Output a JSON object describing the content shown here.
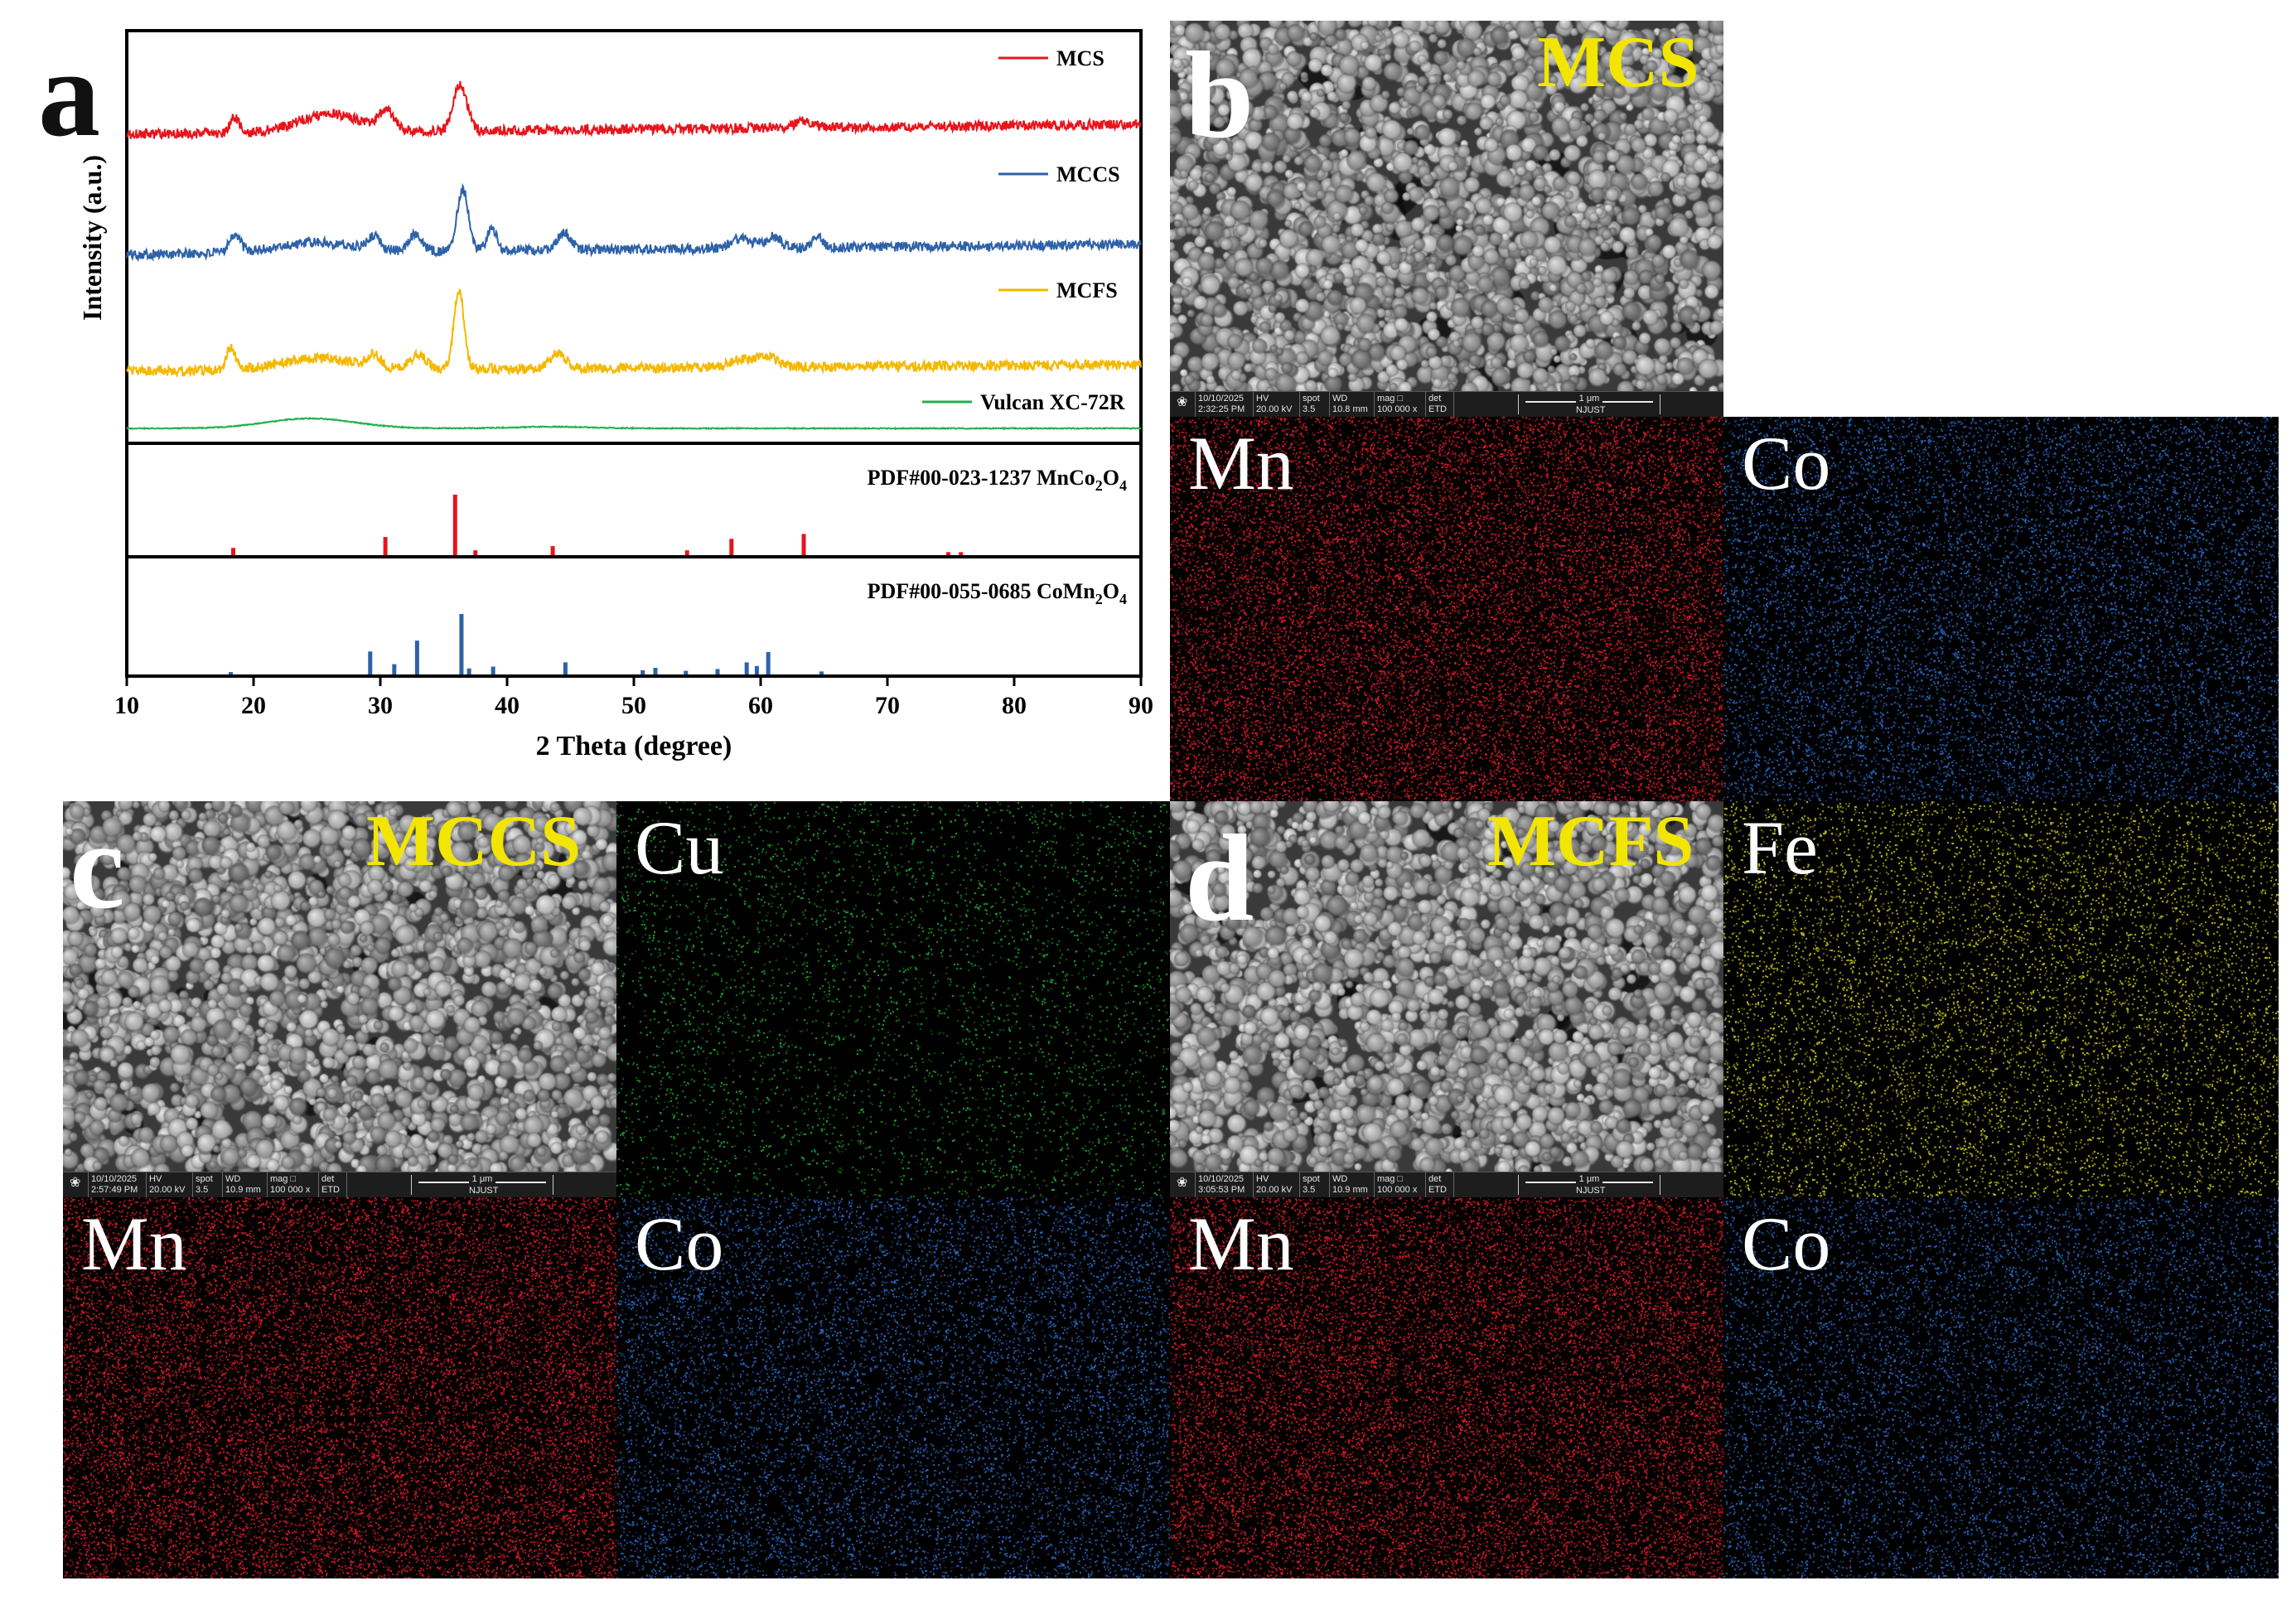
{
  "panels": {
    "a": {
      "letter": "a"
    },
    "b": {
      "letter": "b",
      "sample": "MCS",
      "elements": [
        "Mn",
        "Co"
      ]
    },
    "c": {
      "letter": "c",
      "sample": "MCCS",
      "elements": [
        "Cu",
        "Mn",
        "Co"
      ]
    },
    "d": {
      "letter": "d",
      "sample": "MCFS",
      "elements": [
        "Fe",
        "Mn",
        "Co"
      ]
    }
  },
  "sem_infobars": {
    "b": {
      "date": "10/10/2025",
      "time": "2:32:25 PM",
      "hv_label": "HV",
      "hv": "20.00 kV",
      "spot_label": "spot",
      "spot": "3.5",
      "wd_label": "WD",
      "wd": "10.8 mm",
      "mag_label": "mag",
      "mag": "100 000 x",
      "det_label": "det",
      "det": "ETD",
      "scale": "1 μm",
      "org": "NJUST"
    },
    "c": {
      "date": "10/10/2025",
      "time": "2:57:49 PM",
      "hv_label": "HV",
      "hv": "20.00 kV",
      "spot_label": "spot",
      "spot": "3.5",
      "wd_label": "WD",
      "wd": "10.9 mm",
      "mag_label": "mag",
      "mag": "100 000 x",
      "det_label": "det",
      "det": "ETD",
      "scale": "1 μm",
      "org": "NJUST"
    },
    "d": {
      "date": "10/10/2025",
      "time": "3:05:53 PM",
      "hv_label": "HV",
      "hv": "20.00 kV",
      "spot_label": "spot",
      "spot": "3.5",
      "wd_label": "WD",
      "wd": "10.9 mm",
      "mag_label": "mag",
      "mag": "100 000 x",
      "det_label": "det",
      "det": "ETD",
      "scale": "1 μm",
      "org": "NJUST"
    }
  },
  "map_colors": {
    "Mn": "#e0202a",
    "Co": "#2f6fd0",
    "Cu": "#22c033",
    "Fe": "#d8d820"
  },
  "chart_data": {
    "type": "line",
    "xlabel": "2 Theta (degree)",
    "ylabel": "Intensity (a.u.)",
    "xlim": [
      10,
      90
    ],
    "xticks": [
      10,
      20,
      30,
      40,
      50,
      60,
      70,
      80,
      90
    ],
    "series": [
      {
        "name": "MCS",
        "color": "#e8141c",
        "peaks": [
          18.5,
          26,
          30.5,
          36.3,
          63.5
        ]
      },
      {
        "name": "MCCS",
        "color": "#2e62a8",
        "peaks": [
          18.5,
          25,
          29.5,
          32.8,
          36.5,
          38.8,
          44.5,
          58.5,
          61,
          64.5
        ]
      },
      {
        "name": "MCFS",
        "color": "#f5b800",
        "peaks": [
          18.2,
          25,
          29.5,
          33,
          36.2,
          44,
          58.5,
          60.5
        ]
      },
      {
        "name": "Vulcan XC-72R",
        "color": "#22b04c",
        "peaks": [
          24.5,
          43.5
        ]
      }
    ],
    "references": [
      {
        "label_prefix": "PDF#00-023-1237 MnCo",
        "sub1": "2",
        "mid": "O",
        "sub2": "4",
        "color": "#e8141c",
        "sticks": [
          {
            "x": 18.4,
            "h": 0.12
          },
          {
            "x": 30.4,
            "h": 0.3
          },
          {
            "x": 35.9,
            "h": 1.0
          },
          {
            "x": 37.5,
            "h": 0.08
          },
          {
            "x": 43.6,
            "h": 0.15
          },
          {
            "x": 54.2,
            "h": 0.08
          },
          {
            "x": 57.7,
            "h": 0.27
          },
          {
            "x": 63.4,
            "h": 0.35
          },
          {
            "x": 74.8,
            "h": 0.05
          },
          {
            "x": 75.8,
            "h": 0.05
          }
        ]
      },
      {
        "label_prefix": "PDF#00-055-0685 CoMn",
        "sub1": "2",
        "mid": "O",
        "sub2": "4",
        "color": "#2e62a8",
        "sticks": [
          {
            "x": 18.2,
            "h": 0.04
          },
          {
            "x": 29.2,
            "h": 0.38
          },
          {
            "x": 31.1,
            "h": 0.17
          },
          {
            "x": 32.9,
            "h": 0.56
          },
          {
            "x": 36.4,
            "h": 1.0
          },
          {
            "x": 37.0,
            "h": 0.1
          },
          {
            "x": 38.9,
            "h": 0.13
          },
          {
            "x": 44.6,
            "h": 0.2
          },
          {
            "x": 50.7,
            "h": 0.07
          },
          {
            "x": 51.7,
            "h": 0.11
          },
          {
            "x": 54.1,
            "h": 0.06
          },
          {
            "x": 56.6,
            "h": 0.09
          },
          {
            "x": 58.9,
            "h": 0.2
          },
          {
            "x": 59.7,
            "h": 0.14
          },
          {
            "x": 60.6,
            "h": 0.37
          },
          {
            "x": 64.8,
            "h": 0.05
          }
        ]
      }
    ],
    "grid": false,
    "legend": "inline-right"
  }
}
